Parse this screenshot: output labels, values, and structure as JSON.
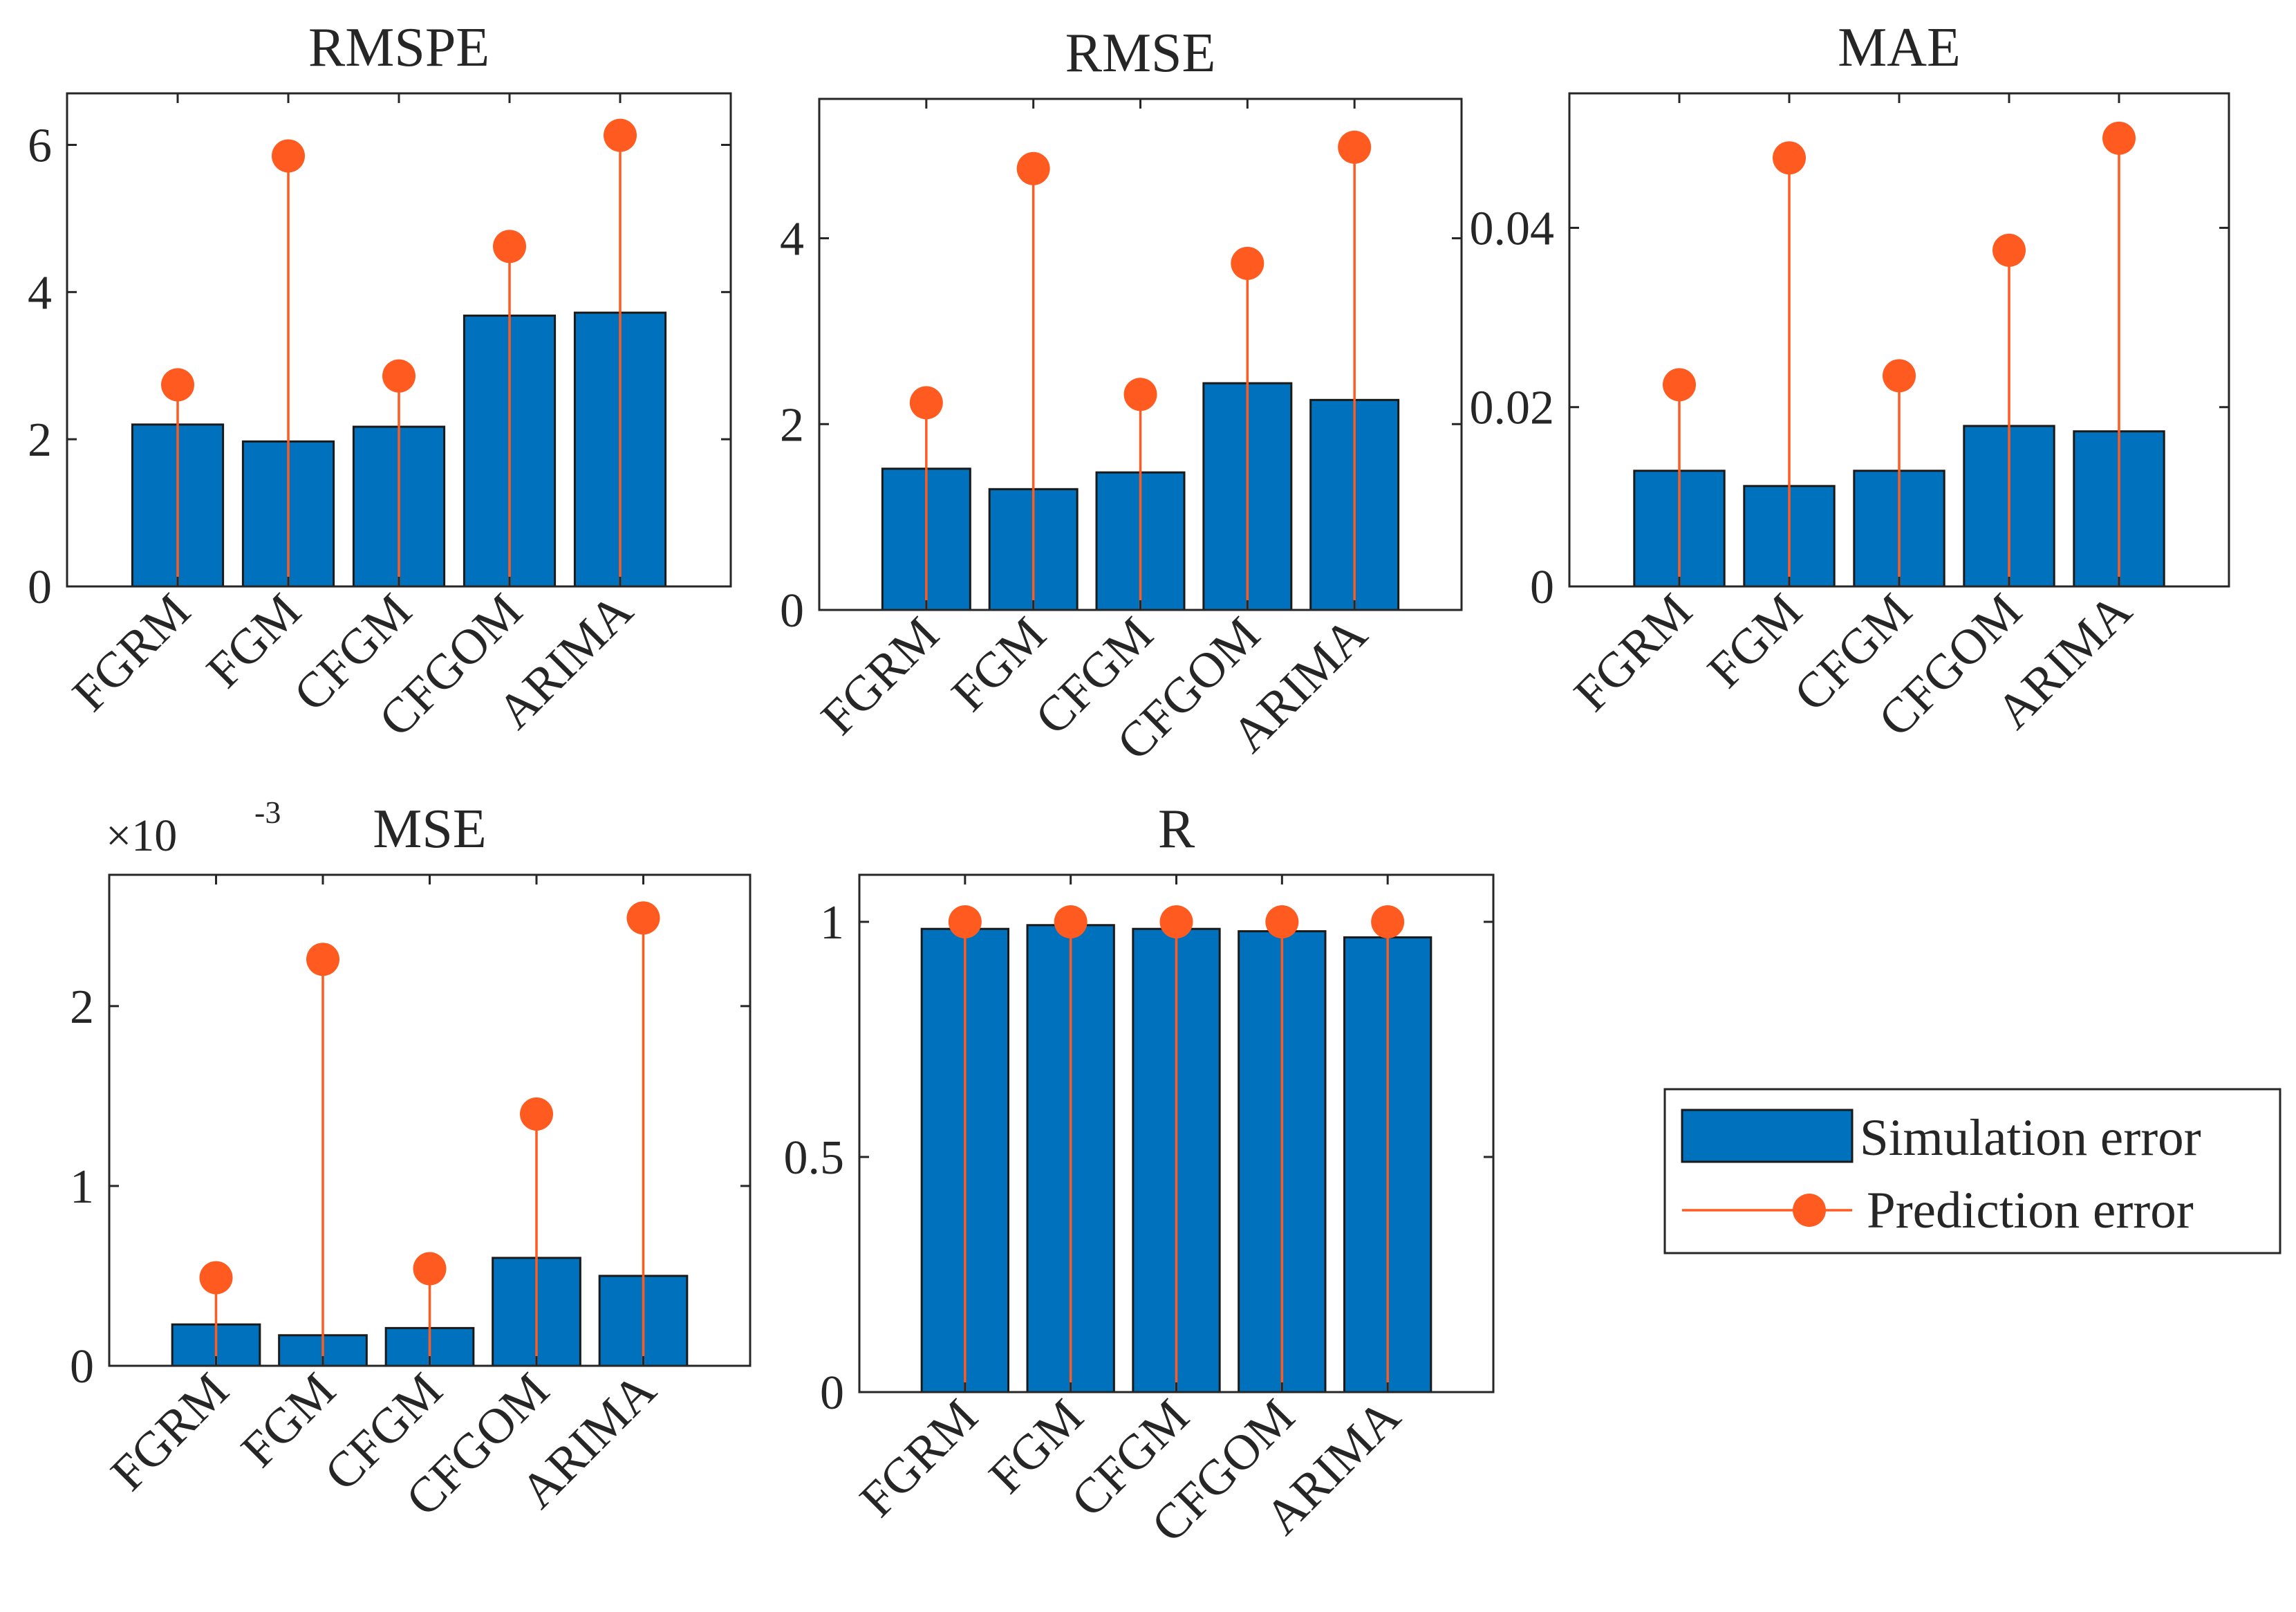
{
  "colors": {
    "simulation": "#0072BD",
    "prediction": "#FF5A1F"
  },
  "legend": {
    "simulation_label": "Simulation error",
    "prediction_label": "Prediction error"
  },
  "chart_data": [
    {
      "type": "bar",
      "title": "RMSPE",
      "categories": [
        "FGRM",
        "FGM",
        "CFGM",
        "CFGOM",
        "ARIMA"
      ],
      "series": [
        {
          "name": "Simulation error",
          "values": [
            2.2,
            1.97,
            2.17,
            3.68,
            3.72
          ]
        },
        {
          "name": "Prediction error",
          "values": [
            2.74,
            5.85,
            2.86,
            4.62,
            6.13
          ]
        }
      ],
      "ylim": [
        0,
        6.7
      ],
      "yticks": [
        0,
        2,
        4,
        6
      ],
      "ytick_labels": [
        "0",
        "2",
        "4",
        "6"
      ],
      "exponent": ""
    },
    {
      "type": "bar",
      "title": "RMSE",
      "categories": [
        "FGRM",
        "FGM",
        "CFGM",
        "CFGOM",
        "ARIMA"
      ],
      "series": [
        {
          "name": "Simulation error",
          "values": [
            1.52,
            1.3,
            1.48,
            2.44,
            2.26
          ]
        },
        {
          "name": "Prediction error",
          "values": [
            2.23,
            4.75,
            2.32,
            3.73,
            4.98
          ]
        }
      ],
      "ylim": [
        0,
        5.5
      ],
      "yticks": [
        0,
        2,
        4
      ],
      "ytick_labels": [
        "0",
        "2",
        "4"
      ],
      "exponent": ""
    },
    {
      "type": "bar",
      "title": "MAE",
      "categories": [
        "FGRM",
        "FGM",
        "CFGM",
        "CFGOM",
        "ARIMA"
      ],
      "series": [
        {
          "name": "Simulation error",
          "values": [
            0.0129,
            0.0112,
            0.0129,
            0.0179,
            0.0173
          ]
        },
        {
          "name": "Prediction error",
          "values": [
            0.0225,
            0.0478,
            0.0235,
            0.0375,
            0.05
          ]
        }
      ],
      "ylim": [
        0,
        0.055
      ],
      "yticks": [
        0,
        0.02,
        0.04
      ],
      "ytick_labels": [
        "0",
        "0.02",
        "0.04"
      ],
      "exponent": ""
    },
    {
      "type": "bar",
      "title": "MSE",
      "categories": [
        "FGRM",
        "FGM",
        "CFGM",
        "CFGOM",
        "ARIMA"
      ],
      "series": [
        {
          "name": "Simulation error",
          "values": [
            0.00023,
            0.00017,
            0.00021,
            0.0006,
            0.0005
          ]
        },
        {
          "name": "Prediction error",
          "values": [
            0.00049,
            0.00226,
            0.00054,
            0.0014,
            0.00249
          ]
        }
      ],
      "ylim": [
        0,
        0.00273
      ],
      "yticks": [
        0,
        0.001,
        0.002
      ],
      "ytick_labels": [
        "0",
        "1",
        "2"
      ],
      "exponent": "×10",
      "exponent_power": "-3"
    },
    {
      "type": "bar",
      "title": "R",
      "categories": [
        "FGRM",
        "FGM",
        "CFGM",
        "CFGOM",
        "ARIMA"
      ],
      "series": [
        {
          "name": "Simulation error",
          "values": [
            0.985,
            0.993,
            0.985,
            0.98,
            0.967
          ]
        },
        {
          "name": "Prediction error",
          "values": [
            1.0,
            1.0,
            1.0,
            1.0,
            1.0
          ]
        }
      ],
      "ylim": [
        0,
        1.1
      ],
      "yticks": [
        0,
        0.5,
        1
      ],
      "ytick_labels": [
        "0",
        "0.5",
        "1"
      ],
      "exponent": ""
    }
  ]
}
